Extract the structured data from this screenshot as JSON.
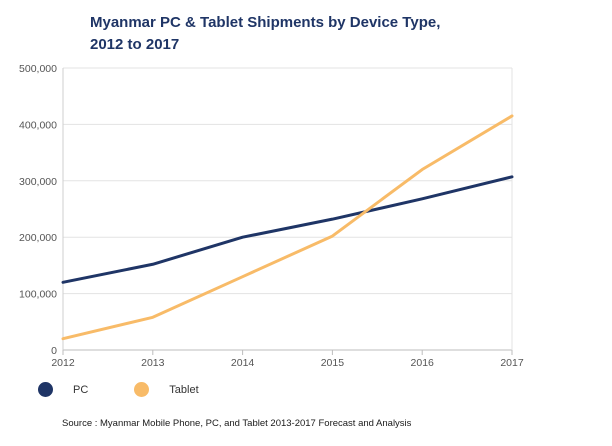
{
  "chart_data": {
    "type": "line",
    "title": "Myanmar PC & Tablet Shipments by Device Type, 2012 to 2017",
    "title_lines": [
      "Myanmar PC & Tablet Shipments by Device Type,",
      "2012 to 2017"
    ],
    "categories": [
      "2012",
      "2013",
      "2014",
      "2015",
      "2016",
      "2017"
    ],
    "y_ticks": [
      "0",
      "100,000",
      "200,000",
      "300,000",
      "400,000",
      "500,000"
    ],
    "ylim": [
      0,
      500000
    ],
    "xlabel": "",
    "ylabel": "",
    "grid": true,
    "legend_position": "bottom-left",
    "series": [
      {
        "name": "PC",
        "color": "#1f3566",
        "values": [
          120000,
          152000,
          200000,
          232000,
          268000,
          307000
        ]
      },
      {
        "name": "Tablet",
        "color": "#f8bb68",
        "values": [
          20000,
          58000,
          130000,
          202000,
          320000,
          415000
        ]
      }
    ],
    "source": "Source : Myanmar Mobile Phone, PC, and Tablet 2013-2017 Forecast and Analysis"
  }
}
